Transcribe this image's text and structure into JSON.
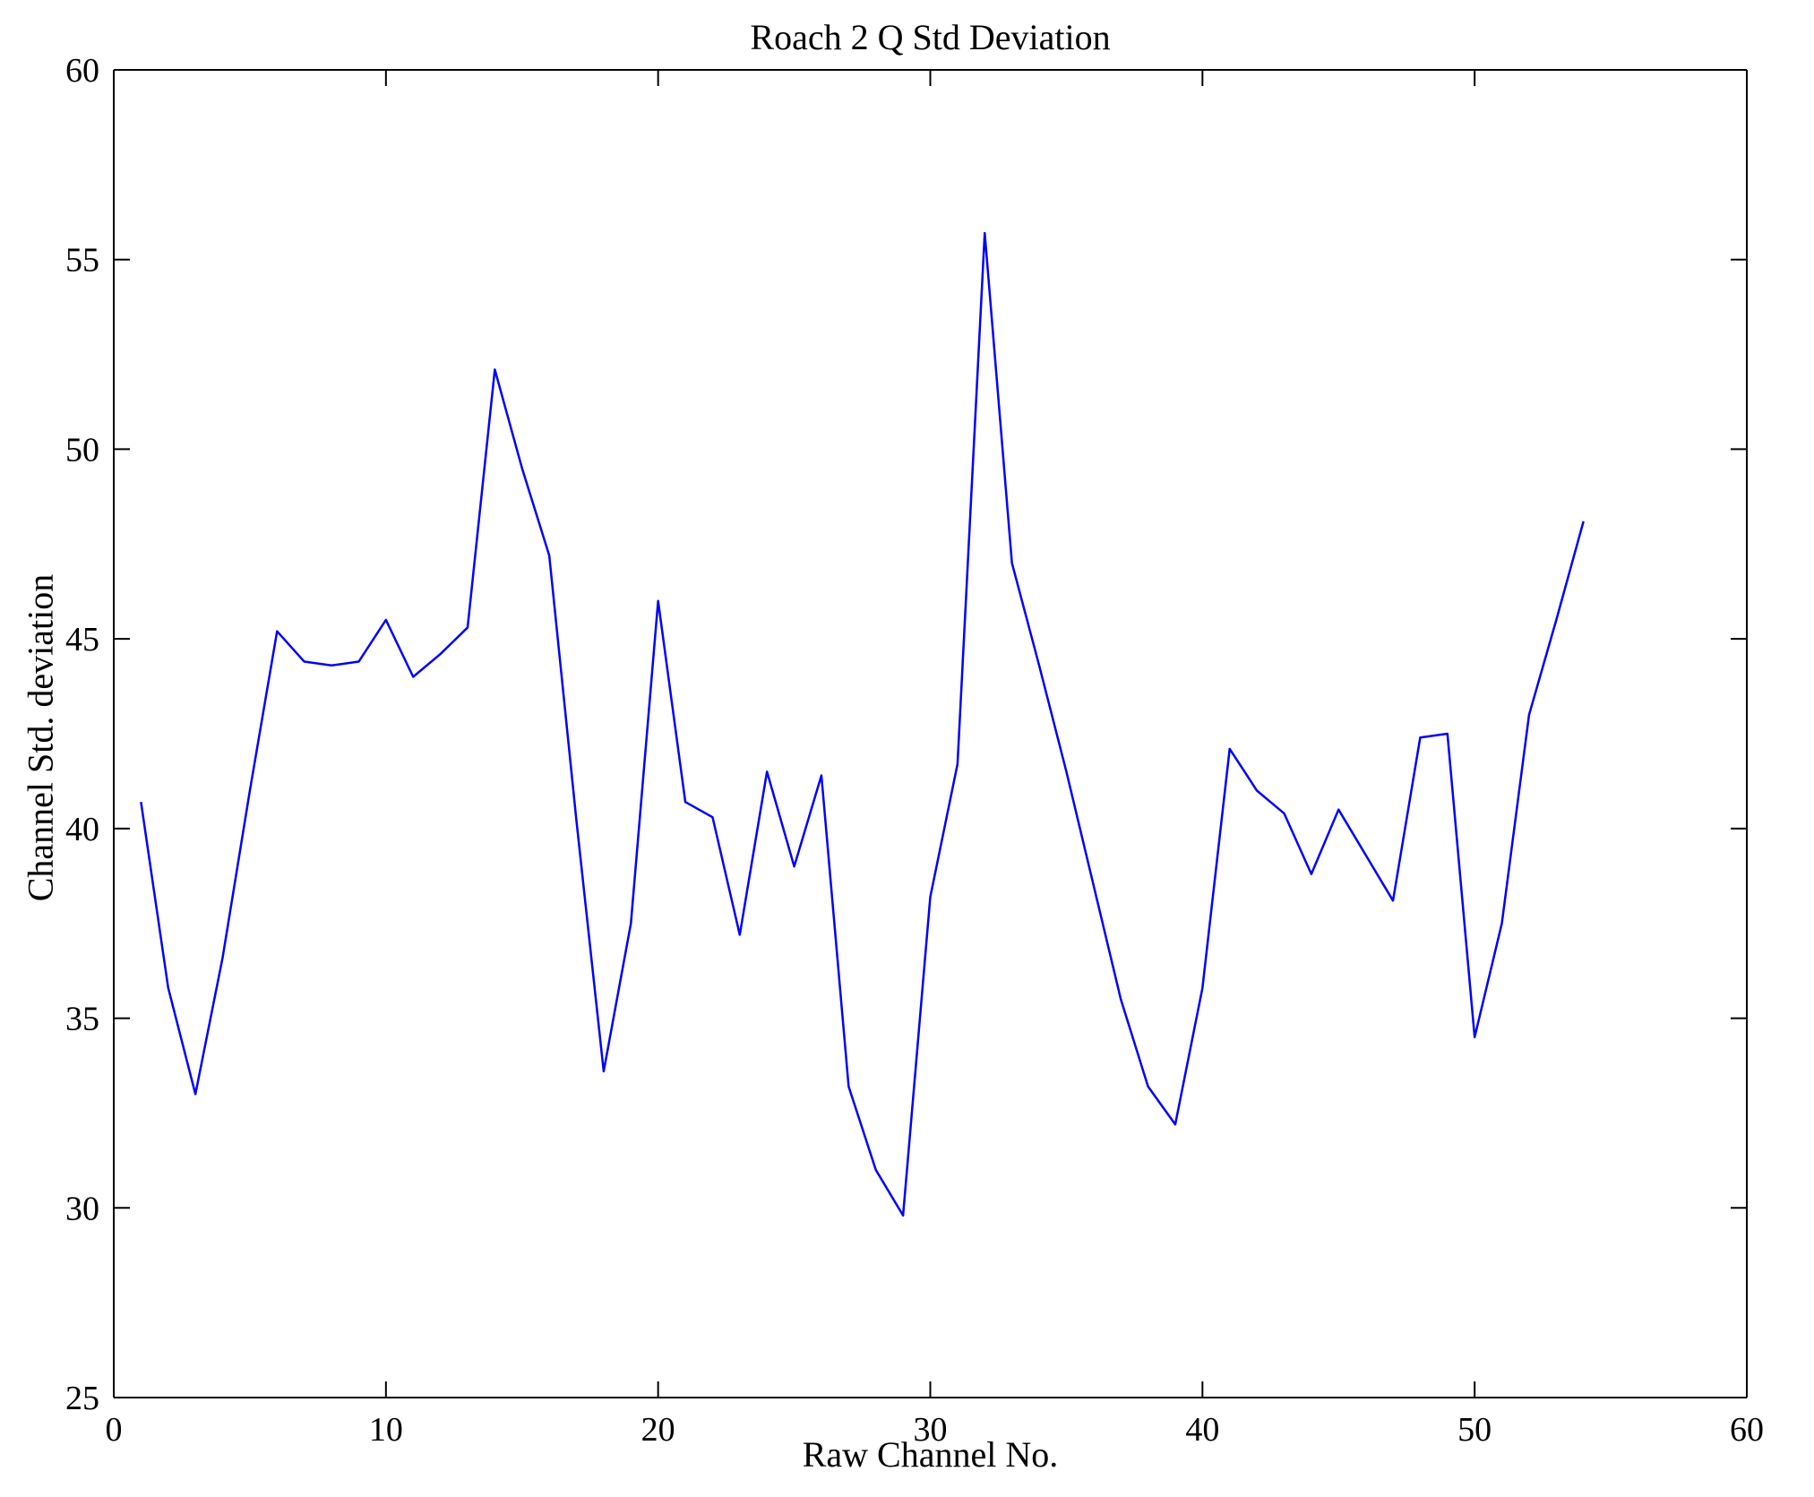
{
  "chart_data": {
    "type": "line",
    "title": "Roach 2 Q Std Deviation",
    "xlabel": "Raw Channel No.",
    "ylabel": "Channel Std. deviation",
    "xlim": [
      0,
      60
    ],
    "ylim": [
      25,
      60
    ],
    "xticks": [
      0,
      10,
      20,
      30,
      40,
      50,
      60
    ],
    "yticks": [
      25,
      30,
      35,
      40,
      45,
      50,
      55,
      60
    ],
    "grid": false,
    "legend": "none",
    "line_color": "#0000ff",
    "axis_color": "#000000",
    "x": [
      1,
      2,
      3,
      4,
      5,
      6,
      7,
      8,
      9,
      10,
      11,
      12,
      13,
      14,
      15,
      16,
      17,
      18,
      19,
      20,
      21,
      22,
      23,
      24,
      25,
      26,
      27,
      28,
      29,
      30,
      31,
      32,
      33,
      34,
      35,
      36,
      37,
      38,
      39,
      40,
      41,
      42,
      43,
      44,
      45,
      46,
      47,
      48,
      49,
      50,
      51,
      52,
      53,
      54
    ],
    "y": [
      40.7,
      35.8,
      33.0,
      36.6,
      41.0,
      45.2,
      44.4,
      44.3,
      44.4,
      45.5,
      44.0,
      44.6,
      45.3,
      52.1,
      49.5,
      47.2,
      40.2,
      33.6,
      37.5,
      46.0,
      40.7,
      40.3,
      37.2,
      41.5,
      39.0,
      41.4,
      33.2,
      31.0,
      29.8,
      38.2,
      41.7,
      55.7,
      47.0,
      44.3,
      41.5,
      38.5,
      35.5,
      33.2,
      32.2,
      35.8,
      42.1,
      41.0,
      40.4,
      38.8,
      40.5,
      39.3,
      38.1,
      42.4,
      42.5,
      34.5,
      37.5,
      43.0,
      45.5,
      48.1
    ]
  }
}
